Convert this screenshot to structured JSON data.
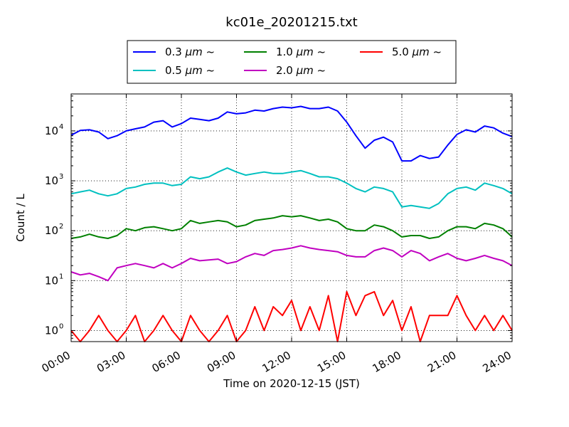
{
  "chart_data": {
    "type": "line",
    "title": "kc01e_20201215.txt",
    "xlabel": "Time on 2020-12-15 (JST)",
    "ylabel": "Count / L",
    "y_scale": "log",
    "grid": true,
    "legend_placement": "top-center",
    "x_range": [
      "00:00",
      "24:00"
    ],
    "y_range": [
      0.6,
      55000
    ],
    "x_ticks": [
      "00:00",
      "03:00",
      "06:00",
      "09:00",
      "12:00",
      "15:00",
      "18:00",
      "21:00",
      "24:00"
    ],
    "y_ticks": [
      {
        "value": 1,
        "base": "10",
        "exp": "0"
      },
      {
        "value": 10,
        "base": "10",
        "exp": "1"
      },
      {
        "value": 100,
        "base": "10",
        "exp": "2"
      },
      {
        "value": 1000,
        "base": "10",
        "exp": "3"
      },
      {
        "value": 10000,
        "base": "10",
        "exp": "4"
      }
    ],
    "x_hours": [
      0.0,
      0.5,
      1.0,
      1.5,
      2.0,
      2.5,
      3.0,
      3.5,
      4.0,
      4.5,
      5.0,
      5.5,
      6.0,
      6.5,
      7.0,
      7.5,
      8.0,
      8.5,
      9.0,
      9.5,
      10.0,
      10.5,
      11.0,
      11.5,
      12.0,
      12.5,
      13.0,
      13.5,
      14.0,
      14.5,
      15.0,
      15.5,
      16.0,
      16.5,
      17.0,
      17.5,
      18.0,
      18.5,
      19.0,
      19.5,
      20.0,
      20.5,
      21.0,
      21.5,
      22.0,
      22.5,
      23.0,
      23.5,
      24.0
    ],
    "series": [
      {
        "name": "0.3",
        "unit": "μm",
        "suffix": "~",
        "color": "#0000ff",
        "values": [
          8200,
          10200,
          10500,
          9500,
          7000,
          8000,
          10000,
          11000,
          12000,
          15000,
          16000,
          12000,
          14000,
          18000,
          17000,
          16000,
          18000,
          24000,
          22000,
          23000,
          26000,
          25000,
          28000,
          30000,
          29000,
          31000,
          28000,
          28000,
          30000,
          25000,
          15000,
          8000,
          4500,
          6500,
          7500,
          6000,
          2500,
          2500,
          3200,
          2800,
          3000,
          5200,
          8500,
          10500,
          9500,
          12500,
          11500,
          9000,
          7700
        ]
      },
      {
        "name": "0.5",
        "unit": "μm",
        "suffix": "~",
        "color": "#00c0c0",
        "values": [
          550,
          600,
          650,
          550,
          500,
          550,
          700,
          750,
          850,
          900,
          900,
          800,
          850,
          1200,
          1100,
          1200,
          1500,
          1800,
          1500,
          1300,
          1400,
          1500,
          1400,
          1400,
          1500,
          1600,
          1400,
          1200,
          1200,
          1100,
          900,
          700,
          600,
          750,
          700,
          600,
          300,
          320,
          300,
          280,
          350,
          550,
          700,
          750,
          650,
          900,
          800,
          700,
          550
        ]
      },
      {
        "name": "1.0",
        "unit": "μm",
        "suffix": "~",
        "color": "#008000",
        "values": [
          70,
          75,
          85,
          75,
          70,
          80,
          110,
          100,
          115,
          120,
          110,
          100,
          110,
          160,
          140,
          150,
          160,
          150,
          120,
          130,
          160,
          170,
          180,
          200,
          190,
          200,
          180,
          160,
          170,
          150,
          110,
          100,
          100,
          130,
          120,
          100,
          75,
          80,
          80,
          70,
          75,
          100,
          120,
          120,
          110,
          140,
          130,
          110,
          75
        ]
      },
      {
        "name": "2.0",
        "unit": "μm",
        "suffix": "~",
        "color": "#c000c0",
        "values": [
          15,
          13,
          14,
          12,
          10,
          18,
          20,
          22,
          20,
          18,
          22,
          18,
          22,
          28,
          25,
          26,
          27,
          22,
          24,
          30,
          35,
          32,
          40,
          42,
          45,
          50,
          45,
          42,
          40,
          38,
          32,
          30,
          30,
          40,
          45,
          40,
          30,
          40,
          35,
          25,
          30,
          35,
          28,
          25,
          28,
          32,
          28,
          25,
          20
        ]
      },
      {
        "name": "5.0",
        "unit": "μm",
        "suffix": "~",
        "color": "#ff0000",
        "values": [
          1,
          0,
          1,
          2,
          1,
          0,
          1,
          2,
          0,
          1,
          2,
          1,
          0,
          2,
          1,
          0,
          1,
          2,
          0,
          1,
          3,
          1,
          3,
          2,
          4,
          1,
          3,
          1,
          5,
          0,
          6,
          2,
          5,
          6,
          2,
          4,
          1,
          3,
          0,
          2,
          2,
          2,
          5,
          2,
          1,
          2,
          1,
          2,
          1
        ]
      }
    ]
  }
}
